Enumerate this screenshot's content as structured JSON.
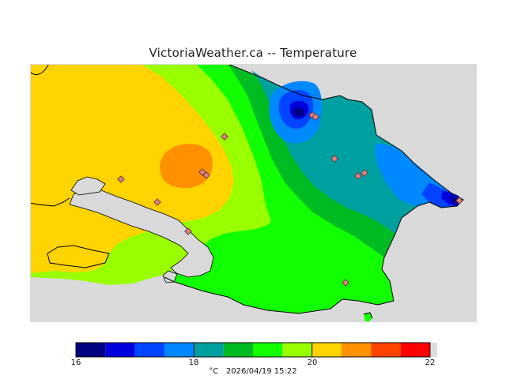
{
  "title": "VictoriaWeather.ca -- Temperature",
  "legend": {
    "colors": [
      "#000080",
      "#0000dd",
      "#0044ff",
      "#0088ff",
      "#00a0a0",
      "#00bb22",
      "#11ff00",
      "#99ff00",
      "#ffd400",
      "#ff9000",
      "#ff4400",
      "#ff0000"
    ],
    "ticks": [
      "16",
      "18",
      "20",
      "22"
    ],
    "unit": "°C",
    "timestamp": "2026/04/19 15:22"
  }
}
